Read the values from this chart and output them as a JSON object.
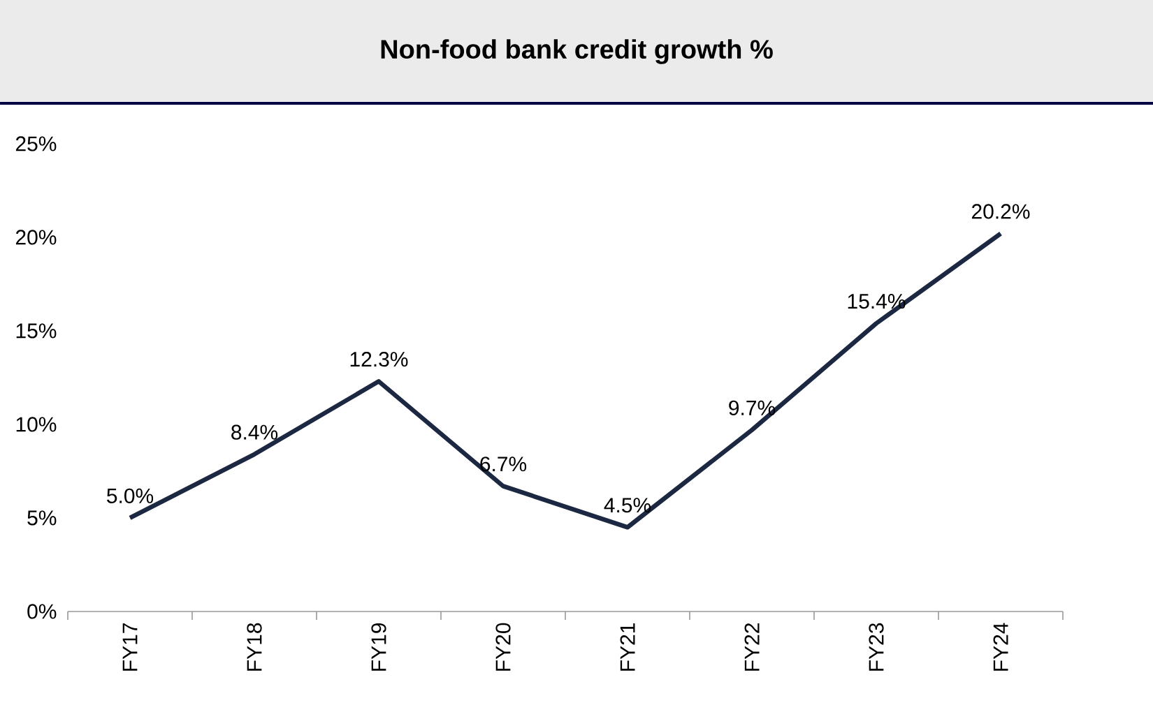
{
  "chart_data": {
    "type": "line",
    "title": "Non-food bank credit growth %",
    "categories": [
      "FY17",
      "FY18",
      "FY19",
      "FY20",
      "FY21",
      "FY22",
      "FY23",
      "FY24"
    ],
    "series": [
      {
        "color": "#1c2841",
        "values": [
          5.0,
          8.4,
          12.3,
          6.7,
          4.5,
          9.7,
          15.4,
          20.2
        ],
        "value_labels": [
          "5.0%",
          "8.4%",
          "12.3%",
          "6.7%",
          "4.5%",
          "9.7%",
          "15.4%",
          "20.2%"
        ]
      }
    ],
    "ylim": [
      0,
      25
    ],
    "yticks": [
      {
        "value": 0,
        "label": "0%"
      },
      {
        "value": 5,
        "label": "5%"
      },
      {
        "value": 10,
        "label": "10%"
      },
      {
        "value": 15,
        "label": "15%"
      },
      {
        "value": 20,
        "label": "20%"
      },
      {
        "value": 25,
        "label": "25%"
      }
    ],
    "grid": false,
    "marker": "none",
    "line_style": "solid"
  }
}
